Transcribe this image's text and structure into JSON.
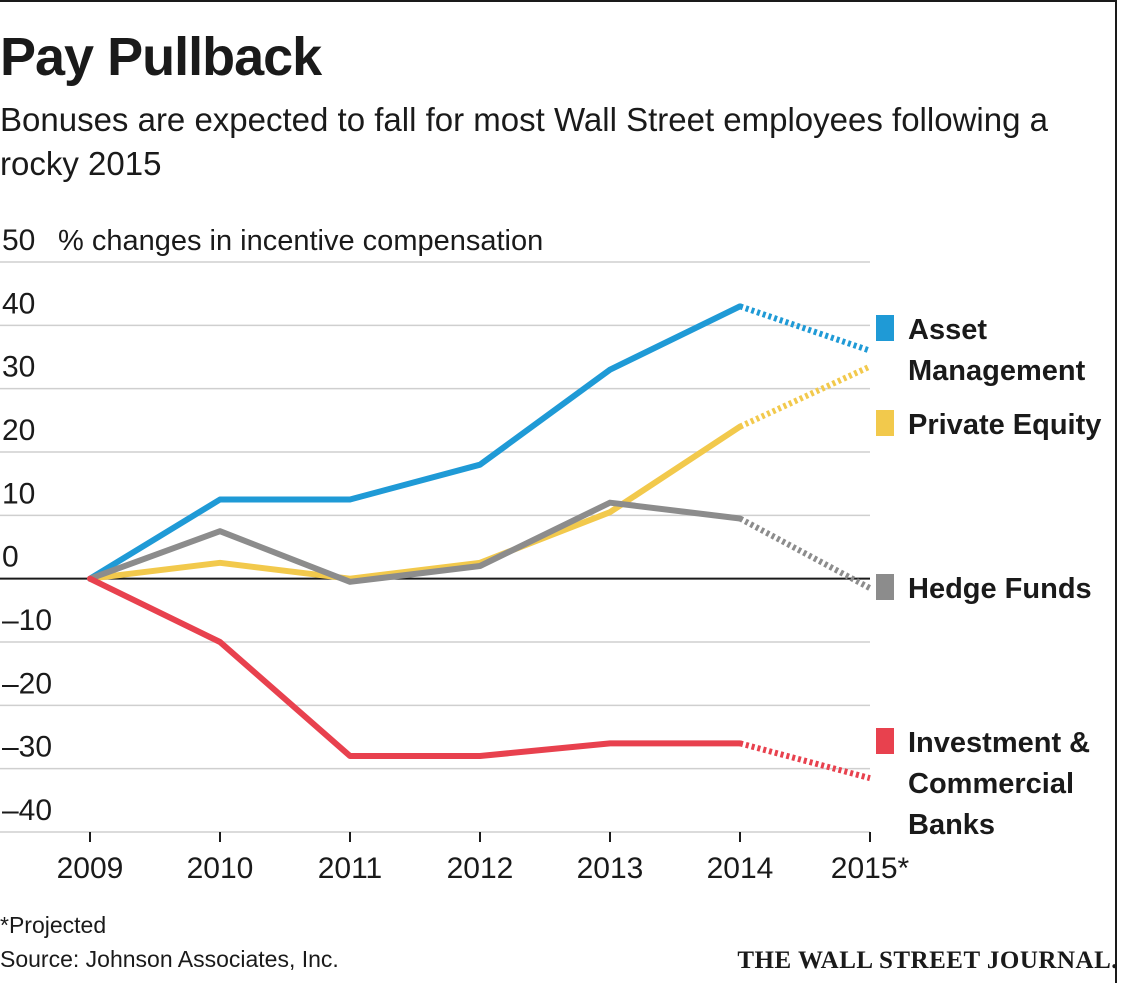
{
  "title": "Pay Pullback",
  "subtitle": "Bonuses are expected to fall for most Wall Street employees following a rocky 2015",
  "footnote": "*Projected",
  "source": "Source: Johnson Associates, Inc.",
  "publisher": "THE WALL STREET JOURNAL.",
  "chart_data": {
    "type": "line",
    "ylabel": "% changes in incentive compensation",
    "x": [
      "2009",
      "2010",
      "2011",
      "2012",
      "2013",
      "2014",
      "2015"
    ],
    "x_tick_labels": [
      "2009",
      "2010",
      "2011",
      "2012",
      "2013",
      "2014",
      "2015*"
    ],
    "y_tick_labels": [
      "50",
      "40",
      "30",
      "20",
      "10",
      "0",
      "–10",
      "–20",
      "–30",
      "–40"
    ],
    "y_ticks": [
      50,
      40,
      30,
      20,
      10,
      0,
      -10,
      -20,
      -30,
      -40
    ],
    "ylim": [
      -40,
      50
    ],
    "grid": true,
    "projected_from": "2014",
    "legend_placement": "right",
    "series": [
      {
        "name": "Asset Management",
        "color": "#1f9ad6",
        "values": [
          0,
          12.5,
          12.5,
          18,
          33,
          43,
          36
        ]
      },
      {
        "name": "Private Equity",
        "color": "#f2c94c",
        "values": [
          0,
          2.5,
          0,
          2.5,
          10.5,
          24,
          33.5
        ]
      },
      {
        "name": "Hedge Funds",
        "color": "#8c8c8c",
        "values": [
          0,
          7.5,
          -0.5,
          2,
          12,
          9.5,
          -1.5
        ]
      },
      {
        "name": "Investment & Commercial Banks",
        "color": "#e8414e",
        "values": [
          0,
          -10,
          -28,
          -28,
          -26,
          -26,
          -31.5
        ]
      }
    ],
    "legend": [
      {
        "lines": [
          "Asset",
          "Management"
        ]
      },
      {
        "lines": [
          "Private Equity"
        ]
      },
      {
        "lines": [
          "Hedge Funds"
        ]
      },
      {
        "lines": [
          "Investment &",
          "Commercial",
          "Banks"
        ]
      }
    ]
  }
}
